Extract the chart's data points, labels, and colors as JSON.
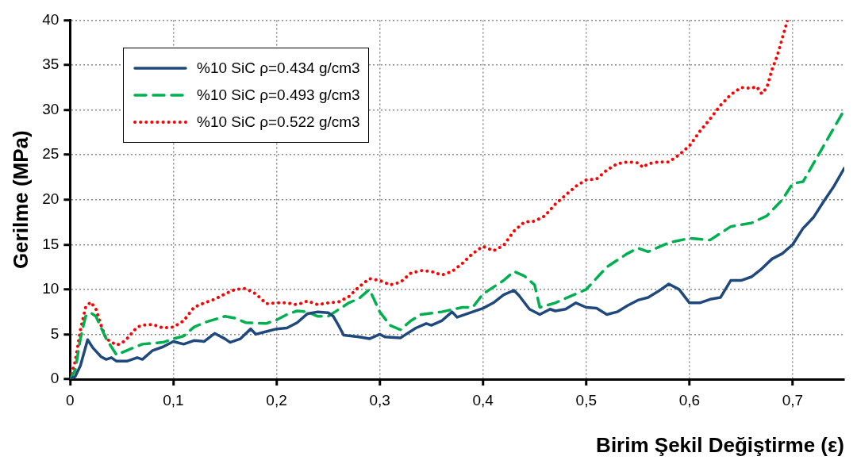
{
  "chart_data": {
    "type": "line",
    "xlabel": "Birim Şekil Değiştirme (ε)",
    "ylabel": "Gerilme (MPa)",
    "xlim": [
      0,
      0.75
    ],
    "ylim": [
      0,
      40
    ],
    "xticks": [
      {
        "value": 0,
        "label": "0"
      },
      {
        "value": 0.1,
        "label": "0,1"
      },
      {
        "value": 0.2,
        "label": "0,2"
      },
      {
        "value": 0.3,
        "label": "0,3"
      },
      {
        "value": 0.4,
        "label": "0,4"
      },
      {
        "value": 0.5,
        "label": "0,5"
      },
      {
        "value": 0.6,
        "label": "0,6"
      },
      {
        "value": 0.7,
        "label": "0,7"
      }
    ],
    "yticks": [
      0,
      5,
      10,
      15,
      20,
      25,
      30,
      35,
      40
    ],
    "grid": true,
    "legend": "top left",
    "marker": "none",
    "series": [
      {
        "name": "%10 SiC ρ=0.434 g/cm3",
        "color": "#1f497d",
        "line_style": "solid",
        "x": [
          0,
          0.005,
          0.01,
          0.017,
          0.022,
          0.03,
          0.035,
          0.04,
          0.045,
          0.055,
          0.065,
          0.07,
          0.08,
          0.09,
          0.1,
          0.11,
          0.12,
          0.13,
          0.14,
          0.15,
          0.155,
          0.165,
          0.175,
          0.18,
          0.19,
          0.2,
          0.21,
          0.22,
          0.23,
          0.24,
          0.25,
          0.255,
          0.26,
          0.265,
          0.28,
          0.29,
          0.3,
          0.305,
          0.32,
          0.335,
          0.345,
          0.35,
          0.36,
          0.37,
          0.375,
          0.39,
          0.4,
          0.41,
          0.42,
          0.43,
          0.435,
          0.445,
          0.455,
          0.465,
          0.47,
          0.48,
          0.49,
          0.5,
          0.51,
          0.52,
          0.53,
          0.54,
          0.55,
          0.56,
          0.57,
          0.58,
          0.59,
          0.6,
          0.61,
          0.62,
          0.63,
          0.64,
          0.65,
          0.66,
          0.67,
          0.68,
          0.69,
          0.7,
          0.71,
          0.72,
          0.73,
          0.74,
          0.75
        ],
        "values": [
          0,
          0.3,
          1.5,
          4.4,
          3.5,
          2.5,
          2.2,
          2.4,
          2,
          2,
          2.4,
          2.2,
          3.2,
          3.6,
          4.2,
          3.9,
          4.3,
          4.2,
          5.1,
          4.5,
          4.1,
          4.5,
          5.6,
          5,
          5.3,
          5.6,
          5.7,
          6.3,
          7.3,
          7.5,
          7.4,
          7,
          6,
          4.9,
          4.7,
          4.5,
          5,
          4.7,
          4.6,
          5.7,
          6.2,
          6,
          6.5,
          7.5,
          6.9,
          7.5,
          7.9,
          8.5,
          9.4,
          9.9,
          9.3,
          7.8,
          7.2,
          7.8,
          7.6,
          7.8,
          8.5,
          8,
          7.9,
          7.2,
          7.5,
          8.2,
          8.8,
          9.1,
          9.8,
          10.6,
          10,
          8.5,
          8.5,
          8.9,
          9.1,
          11,
          11,
          11.4,
          12.3,
          13.4,
          14,
          15,
          16.8,
          18,
          19.8,
          21.5,
          23.5
        ]
      },
      {
        "name": "%10 SiC ρ=0.493 g/cm3",
        "color": "#00b050",
        "line_style": "dashed",
        "x": [
          0,
          0.005,
          0.01,
          0.015,
          0.02,
          0.025,
          0.035,
          0.045,
          0.055,
          0.07,
          0.08,
          0.09,
          0.1,
          0.11,
          0.12,
          0.13,
          0.15,
          0.16,
          0.17,
          0.19,
          0.2,
          0.21,
          0.22,
          0.23,
          0.24,
          0.25,
          0.27,
          0.28,
          0.29,
          0.3,
          0.31,
          0.32,
          0.33,
          0.34,
          0.36,
          0.38,
          0.39,
          0.4,
          0.42,
          0.43,
          0.44,
          0.45,
          0.455,
          0.47,
          0.49,
          0.5,
          0.52,
          0.54,
          0.55,
          0.56,
          0.58,
          0.6,
          0.62,
          0.64,
          0.66,
          0.675,
          0.69,
          0.7,
          0.71,
          0.72,
          0.73,
          0.74,
          0.75
        ],
        "values": [
          0,
          1,
          4.5,
          7,
          7.4,
          7,
          4.5,
          2.7,
          3.2,
          3.9,
          4,
          4.1,
          4.5,
          4.8,
          5.8,
          6.3,
          7,
          6.8,
          6.3,
          6.2,
          6.6,
          7.2,
          7.6,
          7.5,
          7,
          7,
          8.5,
          9,
          10,
          7.5,
          6,
          5.5,
          6.5,
          7.2,
          7.5,
          8,
          8,
          9.5,
          11,
          12,
          11.5,
          10.5,
          8,
          8.5,
          9.5,
          10,
          12.5,
          14,
          14.6,
          14.2,
          15.2,
          15.7,
          15.5,
          17,
          17.4,
          18.2,
          20,
          21.8,
          22,
          24,
          26,
          28,
          30
        ]
      },
      {
        "name": "%10 SiC ρ=0.522 g/cm3",
        "color": "#ff0000",
        "line_style": "dotted",
        "x": [
          0,
          0.005,
          0.01,
          0.015,
          0.02,
          0.025,
          0.03,
          0.035,
          0.045,
          0.05,
          0.055,
          0.065,
          0.07,
          0.08,
          0.09,
          0.1,
          0.11,
          0.12,
          0.13,
          0.14,
          0.15,
          0.16,
          0.17,
          0.18,
          0.19,
          0.2,
          0.21,
          0.22,
          0.23,
          0.24,
          0.25,
          0.26,
          0.27,
          0.28,
          0.29,
          0.3,
          0.31,
          0.32,
          0.33,
          0.34,
          0.35,
          0.36,
          0.37,
          0.38,
          0.39,
          0.4,
          0.41,
          0.42,
          0.43,
          0.44,
          0.45,
          0.46,
          0.47,
          0.48,
          0.49,
          0.5,
          0.51,
          0.52,
          0.53,
          0.54,
          0.55,
          0.555,
          0.56,
          0.57,
          0.58,
          0.59,
          0.6,
          0.61,
          0.62,
          0.63,
          0.64,
          0.65,
          0.66,
          0.665,
          0.67,
          0.675,
          0.68,
          0.685,
          0.69,
          0.695
        ],
        "values": [
          0,
          2,
          5.5,
          8,
          8.6,
          7.8,
          6,
          4.5,
          3.8,
          4,
          4.5,
          5.8,
          6,
          6.1,
          5.7,
          5.8,
          6.5,
          8,
          8.5,
          8.9,
          9.5,
          10,
          10.1,
          9.5,
          8.4,
          8.5,
          8.5,
          8.3,
          8.7,
          8.3,
          8.5,
          8.6,
          9.2,
          10.3,
          11.2,
          11,
          10.5,
          10.8,
          11.8,
          12.1,
          12,
          11.6,
          12,
          12.9,
          14,
          14.8,
          14.3,
          14.9,
          16.5,
          17.5,
          17.6,
          18.2,
          19.5,
          20.5,
          21.5,
          22.2,
          22.3,
          23.3,
          24,
          24.2,
          24.1,
          23.6,
          24,
          24.2,
          24.2,
          25,
          26,
          27.6,
          29,
          30.5,
          31.7,
          32.5,
          32.4,
          32.6,
          31.8,
          32.5,
          34.5,
          36,
          38,
          40
        ]
      }
    ]
  }
}
